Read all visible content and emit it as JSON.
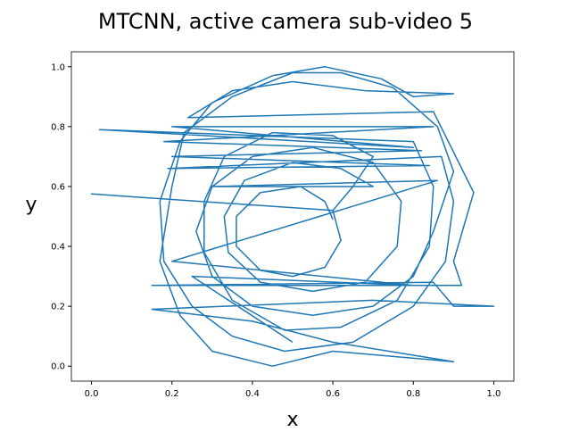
{
  "chart_data": {
    "type": "line",
    "title": "MTCNN, active camera sub-video 5",
    "xlabel": "x",
    "ylabel": "y",
    "color": "#1f77b4",
    "x": [
      0.6,
      0.58,
      0.52,
      0.42,
      0.36,
      0.36,
      0.42,
      0.5,
      0.58,
      0.62,
      0.6,
      0.0,
      0.6,
      0.65,
      0.7,
      0.6,
      0.45,
      0.33,
      0.28,
      0.28,
      0.35,
      0.48,
      0.62,
      0.76,
      0.84,
      0.85,
      0.8,
      0.02,
      0.8,
      0.2,
      0.85,
      0.18,
      0.82,
      0.2,
      0.84,
      0.19,
      0.87,
      0.9,
      0.88,
      0.8,
      0.65,
      0.48,
      0.35,
      0.25,
      0.18,
      0.17,
      0.22,
      0.3,
      0.45,
      0.58,
      0.72,
      0.8,
      0.9,
      0.68,
      0.5,
      0.35,
      0.24,
      0.85,
      0.95,
      0.9,
      0.92,
      0.15,
      0.85,
      0.9,
      1.0,
      0.7,
      0.15,
      0.4,
      0.6,
      0.9,
      0.6,
      0.45,
      0.3,
      0.22,
      0.17,
      0.2,
      0.23,
      0.35,
      0.5,
      0.62,
      0.75,
      0.86,
      0.9,
      0.85,
      0.8,
      0.7,
      0.55,
      0.4,
      0.3,
      0.26,
      0.3,
      0.4,
      0.55,
      0.7,
      0.77,
      0.76,
      0.68,
      0.55,
      0.42,
      0.34,
      0.33,
      0.38,
      0.5,
      0.62,
      0.7,
      0.3,
      0.86,
      0.2,
      0.8,
      0.25,
      0.5
    ],
    "values": [
      0.49,
      0.55,
      0.6,
      0.58,
      0.5,
      0.4,
      0.32,
      0.3,
      0.33,
      0.42,
      0.52,
      0.575,
      0.52,
      0.6,
      0.7,
      0.77,
      0.78,
      0.7,
      0.55,
      0.38,
      0.22,
      0.12,
      0.13,
      0.22,
      0.4,
      0.6,
      0.75,
      0.79,
      0.73,
      0.8,
      0.8,
      0.75,
      0.72,
      0.7,
      0.67,
      0.66,
      0.7,
      0.55,
      0.35,
      0.2,
      0.08,
      0.05,
      0.1,
      0.2,
      0.35,
      0.55,
      0.75,
      0.88,
      0.97,
      1.0,
      0.96,
      0.9,
      0.91,
      0.92,
      0.95,
      0.92,
      0.83,
      0.85,
      0.58,
      0.35,
      0.27,
      0.27,
      0.28,
      0.2,
      0.2,
      0.22,
      0.19,
      0.15,
      0.08,
      0.015,
      0.05,
      0.0,
      0.05,
      0.17,
      0.35,
      0.6,
      0.78,
      0.9,
      0.98,
      0.98,
      0.93,
      0.8,
      0.65,
      0.45,
      0.3,
      0.2,
      0.17,
      0.2,
      0.3,
      0.45,
      0.6,
      0.7,
      0.73,
      0.68,
      0.55,
      0.4,
      0.28,
      0.25,
      0.28,
      0.38,
      0.5,
      0.62,
      0.68,
      0.66,
      0.6,
      0.6,
      0.62,
      0.35,
      0.27,
      0.3,
      0.08
    ],
    "xlim": [
      -0.05,
      1.05
    ],
    "ylim": [
      -0.05,
      1.05
    ],
    "xticks": [
      {
        "value": 0,
        "label": "0.0"
      },
      0.2,
      0.4,
      0.6,
      0.8,
      {
        "value": 1,
        "label": "1.0"
      }
    ],
    "yticks": [
      {
        "value": 0,
        "label": "0.0"
      },
      0.2,
      0.4,
      0.6,
      0.8,
      {
        "value": 1,
        "label": "1.0"
      }
    ]
  }
}
